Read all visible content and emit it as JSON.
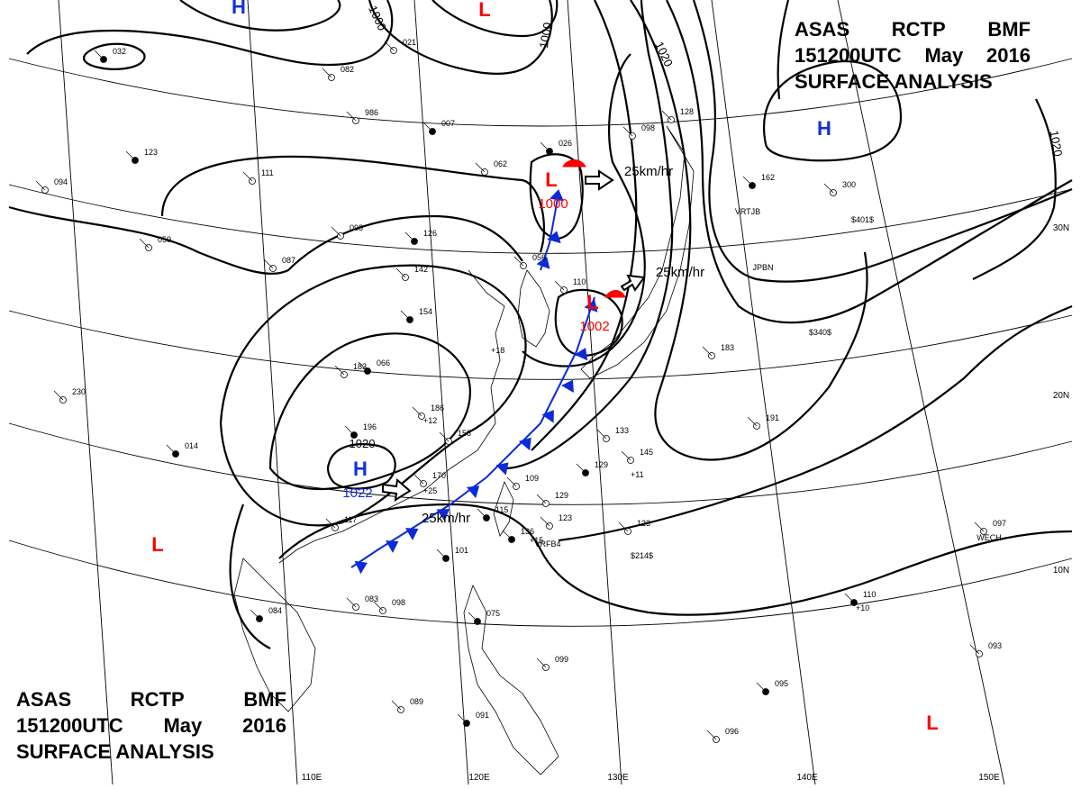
{
  "header": {
    "line1": [
      "ASAS",
      "RCTP",
      "BMF"
    ],
    "line2": [
      "151200UTC",
      "May",
      "2016"
    ],
    "line3": "SURFACE ANALYSIS"
  },
  "colors": {
    "high": "#1030e0",
    "low": "#ff0000",
    "isobar": "#000000",
    "grid": "#000000",
    "cold_front": "#0b2bd8",
    "warm_front": "#ff0000"
  },
  "pressure_systems": [
    {
      "kind": "H",
      "label": "H",
      "pressure": "1022",
      "icon": "high-pressure-marker"
    },
    {
      "kind": "H",
      "label": "H",
      "pressure": "",
      "icon": "high-pressure-marker"
    },
    {
      "kind": "H",
      "label": "H",
      "pressure": "",
      "icon": "high-pressure-marker"
    },
    {
      "kind": "L",
      "label": "L",
      "pressure": "1000",
      "icon": "low-pressure-marker"
    },
    {
      "kind": "L",
      "label": "L",
      "pressure": "1002",
      "icon": "low-pressure-marker"
    },
    {
      "kind": "L",
      "label": "L",
      "pressure": "",
      "icon": "low-pressure-marker"
    },
    {
      "kind": "L",
      "label": "L",
      "pressure": "",
      "icon": "low-pressure-marker"
    },
    {
      "kind": "L",
      "label": "L",
      "pressure": "",
      "icon": "low-pressure-marker"
    }
  ],
  "isobar_labels": [
    "1000",
    "1000",
    "1020",
    "1020",
    "1020"
  ],
  "movement_labels": [
    "25km/hr",
    "25km/hr",
    "25km/hr"
  ],
  "lat_labels": [
    "30N",
    "20N",
    "10N"
  ],
  "lon_labels": [
    "110E",
    "120E",
    "130E",
    "140E",
    "150E"
  ],
  "ship_labels": [
    "VRTJB",
    "JPBN",
    "WECH",
    "VRFB4"
  ],
  "station_values": [
    "032",
    "082",
    "986",
    "007",
    "021",
    "062",
    "026",
    "098",
    "128",
    "123",
    "111",
    "098",
    "126",
    "087",
    "142",
    "154",
    "183",
    "186",
    "196",
    "158",
    "133",
    "129",
    "145",
    "123",
    "110",
    "097",
    "093",
    "095",
    "096",
    "099",
    "091",
    "089",
    "083",
    "084",
    "098",
    "109",
    "101",
    "117",
    "170",
    "136",
    "123",
    "129",
    "115",
    "110",
    "056",
    "066",
    "183",
    "191",
    "162",
    "300",
    "230",
    "014",
    "059",
    "094",
    "075"
  ],
  "station_tags": [
    "$401$",
    "$340$",
    "$214$",
    "+18",
    "+12",
    "+15",
    "+11",
    "+10",
    "+25"
  ]
}
